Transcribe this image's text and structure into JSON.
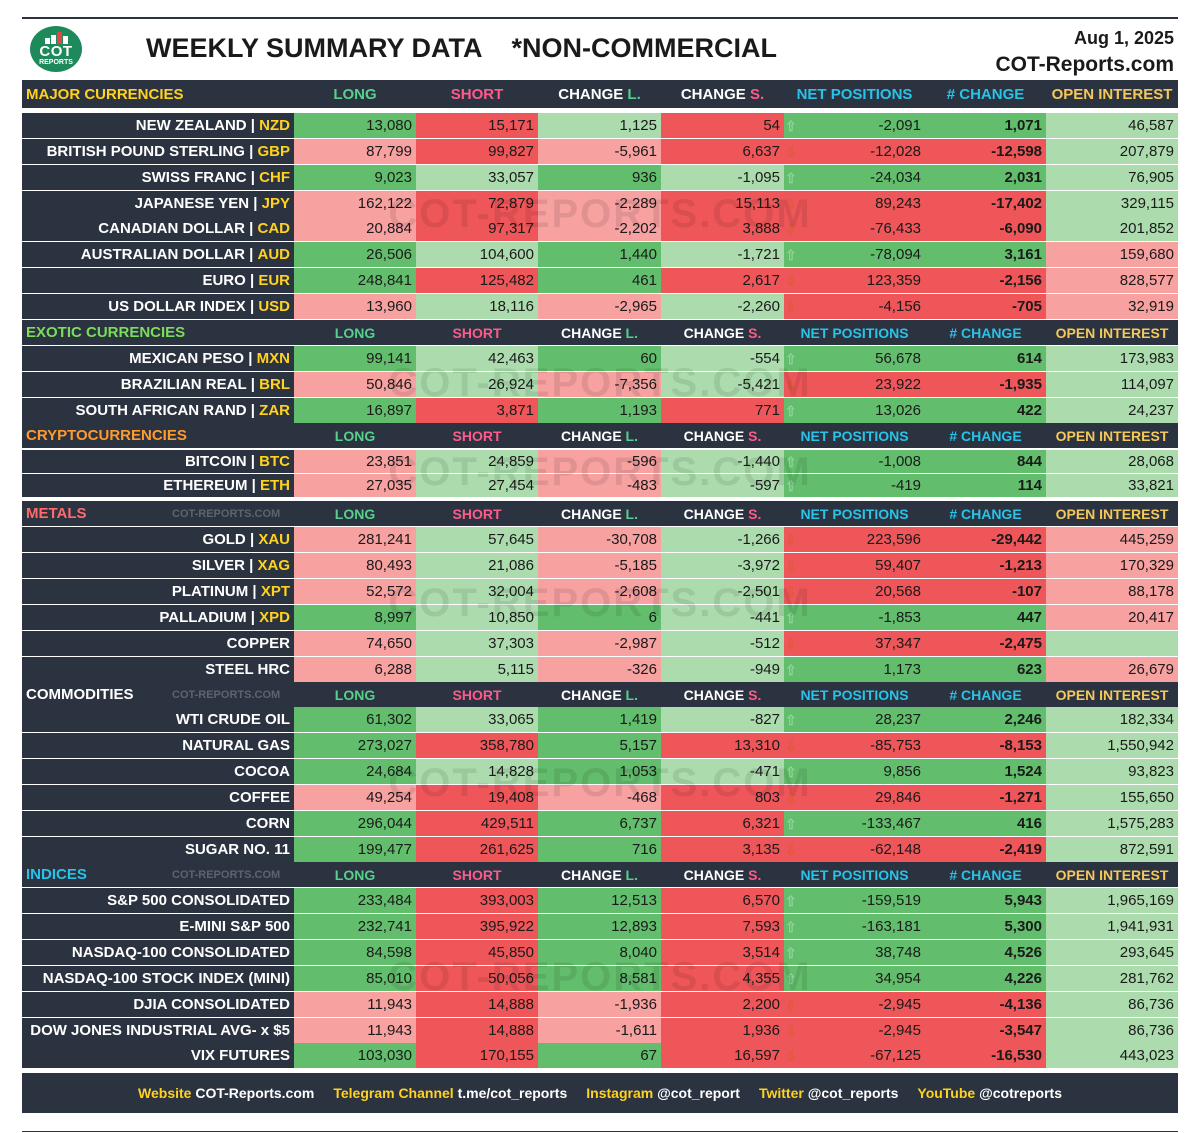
{
  "header": {
    "title": "WEEKLY SUMMARY DATA    *NON-COMMERCIAL",
    "date": "Aug 1, 2025",
    "site": "COT-Reports.com",
    "logo_text": "COT",
    "logo_subtext": "REPORTS"
  },
  "watermark_text": "COT-REPORTS.COM",
  "section_watermark": "COT-REPORTS.COM",
  "columns": {
    "long": "LONG",
    "short": "SHORT",
    "change_l_prefix": "CHANGE ",
    "change_l_suffix": "L.",
    "change_s_prefix": "CHANGE ",
    "change_s_suffix": "S.",
    "net": "NET POSITIONS",
    "num_change": "# CHANGE",
    "oi": "OPEN INTEREST"
  },
  "colors": {
    "dark": "#2b3340",
    "green": "#62be6c",
    "lightgreen": "#acdcae",
    "pink": "#f7a1a1",
    "red": "#ef5659",
    "up_arrow": "#8fd39c",
    "down_arrow": "#e05a38",
    "major": "#ffd21f",
    "exotic": "#7cdc5c",
    "crypto": "#ff9a2e",
    "metals": "#ff6b6b",
    "commodities": "#ffffff",
    "indices": "#27c3e8",
    "long_hdr": "#56d08c",
    "short_hdr": "#ff5a8c",
    "net_hdr": "#27c3e8",
    "oi_hdr": "#f5c85a"
  },
  "sections": [
    {
      "key": "major",
      "title": "MAJOR CURRENCIES",
      "color": "major",
      "watermark": false,
      "rows": [
        {
          "name": "NEW ZEALAND",
          "code": "NZD",
          "long": "13,080",
          "long_c": "green",
          "short": "15,171",
          "short_c": "red",
          "chl": "1,125",
          "chl_c": "lightgreen",
          "chs": "54",
          "chs_c": "red",
          "arrow": "up",
          "net": "-2,091",
          "net_c": "green",
          "chg": "1,071",
          "chg_c": "green",
          "oi": "46,587",
          "oi_c": "lightgreen"
        },
        {
          "name": "BRITISH POUND STERLING",
          "code": "GBP",
          "long": "87,799",
          "long_c": "pink",
          "short": "99,827",
          "short_c": "red",
          "chl": "-5,961",
          "chl_c": "pink",
          "chs": "6,637",
          "chs_c": "red",
          "arrow": "down",
          "net": "-12,028",
          "net_c": "red",
          "chg": "-12,598",
          "chg_c": "red",
          "oi": "207,879",
          "oi_c": "lightgreen"
        },
        {
          "name": "SWISS FRANC",
          "code": "CHF",
          "long": "9,023",
          "long_c": "green",
          "short": "33,057",
          "short_c": "lightgreen",
          "chl": "936",
          "chl_c": "green",
          "chs": "-1,095",
          "chs_c": "lightgreen",
          "arrow": "up",
          "net": "-24,034",
          "net_c": "green",
          "chg": "2,031",
          "chg_c": "green",
          "oi": "76,905",
          "oi_c": "lightgreen"
        },
        {
          "name": "JAPANESE YEN",
          "code": "JPY",
          "long": "162,122",
          "long_c": "pink",
          "short": "72,879",
          "short_c": "red",
          "chl": "-2,289",
          "chl_c": "pink",
          "chs": "15,113",
          "chs_c": "red",
          "arrow": "down",
          "net": "89,243",
          "net_c": "red",
          "chg": "-17,402",
          "chg_c": "red",
          "oi": "329,115",
          "oi_c": "lightgreen"
        },
        {
          "name": "CANADIAN DOLLAR",
          "code": "CAD",
          "long": "20,884",
          "long_c": "pink",
          "short": "97,317",
          "short_c": "red",
          "chl": "-2,202",
          "chl_c": "pink",
          "chs": "3,888",
          "chs_c": "red",
          "arrow": "down",
          "net": "-76,433",
          "net_c": "red",
          "chg": "-6,090",
          "chg_c": "red",
          "oi": "201,852",
          "oi_c": "lightgreen"
        },
        {
          "name": "AUSTRALIAN DOLLAR",
          "code": "AUD",
          "long": "26,506",
          "long_c": "green",
          "short": "104,600",
          "short_c": "lightgreen",
          "chl": "1,440",
          "chl_c": "green",
          "chs": "-1,721",
          "chs_c": "lightgreen",
          "arrow": "up",
          "net": "-78,094",
          "net_c": "green",
          "chg": "3,161",
          "chg_c": "green",
          "oi": "159,680",
          "oi_c": "pink"
        },
        {
          "name": "EURO",
          "code": "EUR",
          "long": "248,841",
          "long_c": "green",
          "short": "125,482",
          "short_c": "red",
          "chl": "461",
          "chl_c": "green",
          "chs": "2,617",
          "chs_c": "red",
          "arrow": "down",
          "net": "123,359",
          "net_c": "red",
          "chg": "-2,156",
          "chg_c": "red",
          "oi": "828,577",
          "oi_c": "pink"
        },
        {
          "name": "US DOLLAR INDEX",
          "code": "USD",
          "long": "13,960",
          "long_c": "pink",
          "short": "18,116",
          "short_c": "lightgreen",
          "chl": "-2,965",
          "chl_c": "pink",
          "chs": "-2,260",
          "chs_c": "lightgreen",
          "arrow": "down",
          "net": "-4,156",
          "net_c": "red",
          "chg": "-705",
          "chg_c": "red",
          "oi": "32,919",
          "oi_c": "pink"
        }
      ]
    },
    {
      "key": "exotic",
      "title": "EXOTIC CURRENCIES",
      "color": "exotic",
      "watermark": false,
      "rows": [
        {
          "name": "MEXICAN PESO",
          "code": "MXN",
          "long": "99,141",
          "long_c": "green",
          "short": "42,463",
          "short_c": "lightgreen",
          "chl": "60",
          "chl_c": "green",
          "chs": "-554",
          "chs_c": "lightgreen",
          "arrow": "up",
          "net": "56,678",
          "net_c": "green",
          "chg": "614",
          "chg_c": "green",
          "oi": "173,983",
          "oi_c": "lightgreen"
        },
        {
          "name": "BRAZILIAN REAL",
          "code": "BRL",
          "long": "50,846",
          "long_c": "pink",
          "short": "26,924",
          "short_c": "lightgreen",
          "chl": "-7,356",
          "chl_c": "pink",
          "chs": "-5,421",
          "chs_c": "lightgreen",
          "arrow": "down",
          "net": "23,922",
          "net_c": "red",
          "chg": "-1,935",
          "chg_c": "red",
          "oi": "114,097",
          "oi_c": "lightgreen"
        },
        {
          "name": "SOUTH AFRICAN RAND",
          "code": "ZAR",
          "long": "16,897",
          "long_c": "green",
          "short": "3,871",
          "short_c": "red",
          "chl": "1,193",
          "chl_c": "green",
          "chs": "771",
          "chs_c": "red",
          "arrow": "up",
          "net": "13,026",
          "net_c": "green",
          "chg": "422",
          "chg_c": "green",
          "oi": "24,237",
          "oi_c": "lightgreen"
        }
      ]
    },
    {
      "key": "crypto",
      "title": "CRYPTOCURRENCIES",
      "color": "crypto",
      "watermark": false,
      "rows": [
        {
          "name": "BITCOIN",
          "code": "BTC",
          "long": "23,851",
          "long_c": "pink",
          "short": "24,859",
          "short_c": "lightgreen",
          "chl": "-596",
          "chl_c": "pink",
          "chs": "-1,440",
          "chs_c": "lightgreen",
          "arrow": "up",
          "net": "-1,008",
          "net_c": "green",
          "chg": "844",
          "chg_c": "green",
          "oi": "28,068",
          "oi_c": "lightgreen"
        },
        {
          "name": "ETHEREUM",
          "code": "ETH",
          "long": "27,035",
          "long_c": "pink",
          "short": "27,454",
          "short_c": "lightgreen",
          "chl": "-483",
          "chl_c": "pink",
          "chs": "-597",
          "chs_c": "lightgreen",
          "arrow": "up",
          "net": "-419",
          "net_c": "green",
          "chg": "114",
          "chg_c": "green",
          "oi": "33,821",
          "oi_c": "lightgreen"
        }
      ]
    },
    {
      "key": "metals",
      "title": "METALS",
      "color": "metals",
      "watermark": true,
      "rows": [
        {
          "name": "GOLD",
          "code": "XAU",
          "long": "281,241",
          "long_c": "pink",
          "short": "57,645",
          "short_c": "lightgreen",
          "chl": "-30,708",
          "chl_c": "pink",
          "chs": "-1,266",
          "chs_c": "lightgreen",
          "arrow": "down",
          "net": "223,596",
          "net_c": "red",
          "chg": "-29,442",
          "chg_c": "red",
          "oi": "445,259",
          "oi_c": "pink"
        },
        {
          "name": "SILVER",
          "code": "XAG",
          "long": "80,493",
          "long_c": "pink",
          "short": "21,086",
          "short_c": "lightgreen",
          "chl": "-5,185",
          "chl_c": "pink",
          "chs": "-3,972",
          "chs_c": "lightgreen",
          "arrow": "down",
          "net": "59,407",
          "net_c": "red",
          "chg": "-1,213",
          "chg_c": "red",
          "oi": "170,329",
          "oi_c": "pink"
        },
        {
          "name": "PLATINUM",
          "code": "XPT",
          "long": "52,572",
          "long_c": "pink",
          "short": "32,004",
          "short_c": "lightgreen",
          "chl": "-2,608",
          "chl_c": "pink",
          "chs": "-2,501",
          "chs_c": "lightgreen",
          "arrow": "down",
          "net": "20,568",
          "net_c": "red",
          "chg": "-107",
          "chg_c": "red",
          "oi": "88,178",
          "oi_c": "pink"
        },
        {
          "name": "PALLADIUM",
          "code": "XPD",
          "long": "8,997",
          "long_c": "green",
          "short": "10,850",
          "short_c": "lightgreen",
          "chl": "6",
          "chl_c": "green",
          "chs": "-441",
          "chs_c": "lightgreen",
          "arrow": "up",
          "net": "-1,853",
          "net_c": "green",
          "chg": "447",
          "chg_c": "green",
          "oi": "20,417",
          "oi_c": "pink"
        },
        {
          "name": "COPPER",
          "code": "",
          "long": "74,650",
          "long_c": "pink",
          "short": "37,303",
          "short_c": "lightgreen",
          "chl": "-2,987",
          "chl_c": "pink",
          "chs": "-512",
          "chs_c": "lightgreen",
          "arrow": "down",
          "net": "37,347",
          "net_c": "red",
          "chg": "-2,475",
          "chg_c": "red",
          "oi": "",
          "oi_c": "lightgreen"
        },
        {
          "name": "STEEL HRC",
          "code": "",
          "long": "6,288",
          "long_c": "pink",
          "short": "5,115",
          "short_c": "lightgreen",
          "chl": "-326",
          "chl_c": "pink",
          "chs": "-949",
          "chs_c": "lightgreen",
          "arrow": "up",
          "net": "1,173",
          "net_c": "green",
          "chg": "623",
          "chg_c": "green",
          "oi": "26,679",
          "oi_c": "pink"
        }
      ]
    },
    {
      "key": "commodities",
      "title": "COMMODITIES",
      "color": "commodities",
      "watermark": true,
      "rows": [
        {
          "name": "WTI CRUDE OIL",
          "code": "",
          "long": "61,302",
          "long_c": "green",
          "short": "33,065",
          "short_c": "lightgreen",
          "chl": "1,419",
          "chl_c": "green",
          "chs": "-827",
          "chs_c": "lightgreen",
          "arrow": "up",
          "net": "28,237",
          "net_c": "green",
          "chg": "2,246",
          "chg_c": "green",
          "oi": "182,334",
          "oi_c": "lightgreen"
        },
        {
          "name": "NATURAL GAS",
          "code": "",
          "long": "273,027",
          "long_c": "green",
          "short": "358,780",
          "short_c": "red",
          "chl": "5,157",
          "chl_c": "green",
          "chs": "13,310",
          "chs_c": "red",
          "arrow": "down",
          "net": "-85,753",
          "net_c": "red",
          "chg": "-8,153",
          "chg_c": "red",
          "oi": "1,550,942",
          "oi_c": "lightgreen"
        },
        {
          "name": "COCOA",
          "code": "",
          "long": "24,684",
          "long_c": "green",
          "short": "14,828",
          "short_c": "lightgreen",
          "chl": "1,053",
          "chl_c": "green",
          "chs": "-471",
          "chs_c": "lightgreen",
          "arrow": "up",
          "net": "9,856",
          "net_c": "green",
          "chg": "1,524",
          "chg_c": "green",
          "oi": "93,823",
          "oi_c": "lightgreen"
        },
        {
          "name": "COFFEE",
          "code": "",
          "long": "49,254",
          "long_c": "pink",
          "short": "19,408",
          "short_c": "red",
          "chl": "-468",
          "chl_c": "pink",
          "chs": "803",
          "chs_c": "red",
          "arrow": "down",
          "net": "29,846",
          "net_c": "red",
          "chg": "-1,271",
          "chg_c": "red",
          "oi": "155,650",
          "oi_c": "lightgreen"
        },
        {
          "name": "CORN",
          "code": "",
          "long": "296,044",
          "long_c": "green",
          "short": "429,511",
          "short_c": "red",
          "chl": "6,737",
          "chl_c": "green",
          "chs": "6,321",
          "chs_c": "red",
          "arrow": "up",
          "net": "-133,467",
          "net_c": "green",
          "chg": "416",
          "chg_c": "green",
          "oi": "1,575,283",
          "oi_c": "lightgreen"
        },
        {
          "name": "SUGAR NO. 11",
          "code": "",
          "long": "199,477",
          "long_c": "green",
          "short": "261,625",
          "short_c": "red",
          "chl": "716",
          "chl_c": "green",
          "chs": "3,135",
          "chs_c": "red",
          "arrow": "down",
          "net": "-62,148",
          "net_c": "red",
          "chg": "-2,419",
          "chg_c": "red",
          "oi": "872,591",
          "oi_c": "lightgreen"
        }
      ]
    },
    {
      "key": "indices",
      "title": "INDICES",
      "color": "indices",
      "watermark": true,
      "rows": [
        {
          "name": "S&P 500 CONSOLIDATED",
          "code": "",
          "long": "233,484",
          "long_c": "green",
          "short": "393,003",
          "short_c": "red",
          "chl": "12,513",
          "chl_c": "green",
          "chs": "6,570",
          "chs_c": "red",
          "arrow": "up",
          "net": "-159,519",
          "net_c": "green",
          "chg": "5,943",
          "chg_c": "green",
          "oi": "1,965,169",
          "oi_c": "lightgreen"
        },
        {
          "name": "E-MINI S&P 500",
          "code": "",
          "long": "232,741",
          "long_c": "green",
          "short": "395,922",
          "short_c": "red",
          "chl": "12,893",
          "chl_c": "green",
          "chs": "7,593",
          "chs_c": "red",
          "arrow": "up",
          "net": "-163,181",
          "net_c": "green",
          "chg": "5,300",
          "chg_c": "green",
          "oi": "1,941,931",
          "oi_c": "lightgreen"
        },
        {
          "name": "NASDAQ-100 CONSOLIDATED",
          "code": "",
          "long": "84,598",
          "long_c": "green",
          "short": "45,850",
          "short_c": "red",
          "chl": "8,040",
          "chl_c": "green",
          "chs": "3,514",
          "chs_c": "red",
          "arrow": "up",
          "net": "38,748",
          "net_c": "green",
          "chg": "4,526",
          "chg_c": "green",
          "oi": "293,645",
          "oi_c": "lightgreen"
        },
        {
          "name": "NASDAQ-100 STOCK INDEX (MINI)",
          "code": "",
          "long": "85,010",
          "long_c": "green",
          "short": "50,056",
          "short_c": "red",
          "chl": "8,581",
          "chl_c": "green",
          "chs": "4,355",
          "chs_c": "red",
          "arrow": "up",
          "net": "34,954",
          "net_c": "green",
          "chg": "4,226",
          "chg_c": "green",
          "oi": "281,762",
          "oi_c": "lightgreen"
        },
        {
          "name": "DJIA CONSOLIDATED",
          "code": "",
          "long": "11,943",
          "long_c": "pink",
          "short": "14,888",
          "short_c": "red",
          "chl": "-1,936",
          "chl_c": "pink",
          "chs": "2,200",
          "chs_c": "red",
          "arrow": "down",
          "net": "-2,945",
          "net_c": "red",
          "chg": "-4,136",
          "chg_c": "red",
          "oi": "86,736",
          "oi_c": "lightgreen"
        },
        {
          "name": "DOW JONES INDUSTRIAL AVG- x $5",
          "code": "",
          "long": "11,943",
          "long_c": "pink",
          "short": "14,888",
          "short_c": "red",
          "chl": "-1,611",
          "chl_c": "pink",
          "chs": "1,936",
          "chs_c": "red",
          "arrow": "down",
          "net": "-2,945",
          "net_c": "red",
          "chg": "-3,547",
          "chg_c": "red",
          "oi": "86,736",
          "oi_c": "lightgreen"
        },
        {
          "name": "VIX FUTURES",
          "code": "",
          "long": "103,030",
          "long_c": "green",
          "short": "170,155",
          "short_c": "red",
          "chl": "67",
          "chl_c": "green",
          "chs": "16,597",
          "chs_c": "red",
          "arrow": "down",
          "net": "-67,125",
          "net_c": "red",
          "chg": "-16,530",
          "chg_c": "red",
          "oi": "443,023",
          "oi_c": "lightgreen"
        }
      ]
    }
  ],
  "footer": [
    {
      "label": "Website",
      "value": "COT-Reports.com"
    },
    {
      "label": "Telegram Channel",
      "value": "t.me/cot_reports"
    },
    {
      "label": "Instagram",
      "value": "@cot_report"
    },
    {
      "label": "Twitter",
      "value": "@cot_reports"
    },
    {
      "label": "YouTube",
      "value": "@cotreports"
    }
  ]
}
